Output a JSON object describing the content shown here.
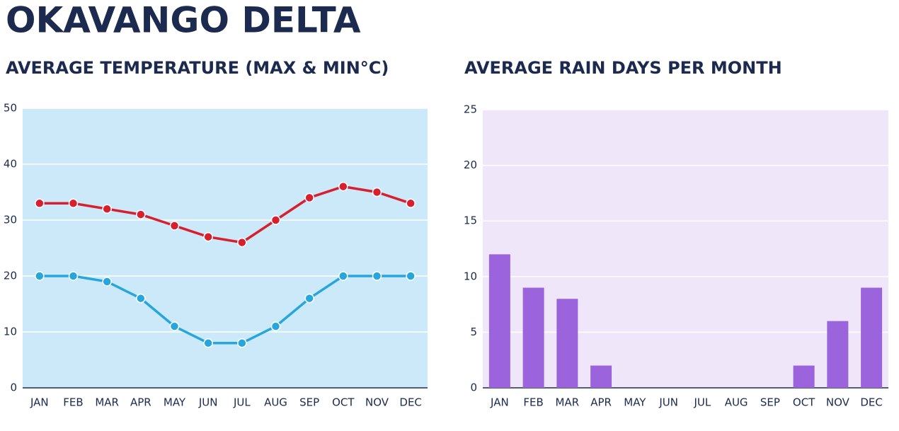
{
  "title": "OKAVANGO DELTA",
  "chart_data": [
    {
      "type": "line",
      "title": "AVERAGE TEMPERATURE (MAX & MIN°C)",
      "categories": [
        "JAN",
        "FEB",
        "MAR",
        "APR",
        "MAY",
        "JUN",
        "JUL",
        "AUG",
        "SEP",
        "OCT",
        "NOV",
        "DEC"
      ],
      "series": [
        {
          "color": "#d7202f",
          "values": [
            33,
            33,
            32,
            31,
            29,
            27,
            26,
            30,
            34,
            36,
            35,
            33
          ]
        },
        {
          "color": "#27a6dd",
          "values": [
            20,
            20,
            19,
            16,
            11,
            8,
            8,
            11,
            16,
            20,
            20,
            20
          ]
        }
      ],
      "ylim": [
        0,
        50
      ],
      "yticks": [
        0,
        10,
        20,
        30,
        40,
        50
      ],
      "grid": true,
      "background": "#cbe9f8"
    },
    {
      "type": "bar",
      "title": "AVERAGE RAIN DAYS PER MONTH",
      "categories": [
        "JAN",
        "FEB",
        "MAR",
        "APR",
        "MAY",
        "JUN",
        "JUL",
        "AUG",
        "SEP",
        "OCT",
        "NOV",
        "DEC"
      ],
      "values": [
        12,
        9,
        8,
        2,
        0,
        0,
        0,
        0,
        0,
        2,
        6,
        9
      ],
      "color": "#9b64dc",
      "ylim": [
        0,
        25
      ],
      "yticks": [
        0,
        5,
        10,
        15,
        20,
        25
      ],
      "grid": true,
      "background": "#efe6f9"
    }
  ]
}
